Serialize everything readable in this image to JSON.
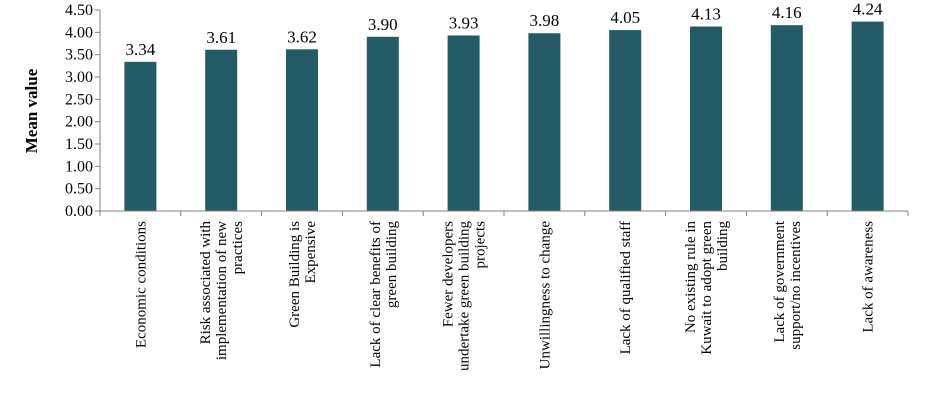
{
  "chart_data": {
    "type": "bar",
    "ylabel": "Mean value",
    "ylim": [
      0,
      4.5
    ],
    "yticks": [
      "0.00",
      "0.50",
      "1.00",
      "1.50",
      "2.00",
      "2.50",
      "3.00",
      "3.50",
      "4.00",
      "4.50"
    ],
    "grid": false,
    "bar_color": "#235a67",
    "categories": [
      [
        "Economic conditions"
      ],
      [
        "Risk associated with",
        "implementation of new",
        "practices"
      ],
      [
        "Green Building is",
        "Expensive"
      ],
      [
        "Lack of clear benefits of",
        "green building"
      ],
      [
        "Fewer developers",
        "undertake green building",
        "projects"
      ],
      [
        "Unwillingness to change"
      ],
      [
        "Lack of qualified staff"
      ],
      [
        "No existing rule in",
        "Kuwait to adopt green",
        "building"
      ],
      [
        "Lack of government",
        "support/no incentives"
      ],
      [
        "Lack of awareness"
      ]
    ],
    "values": [
      3.34,
      3.61,
      3.62,
      3.9,
      3.93,
      3.98,
      4.05,
      4.13,
      4.16,
      4.24
    ],
    "value_labels": [
      "3.34",
      "3.61",
      "3.62",
      "3.90",
      "3.93",
      "3.98",
      "4.05",
      "4.13",
      "4.16",
      "4.24"
    ]
  }
}
